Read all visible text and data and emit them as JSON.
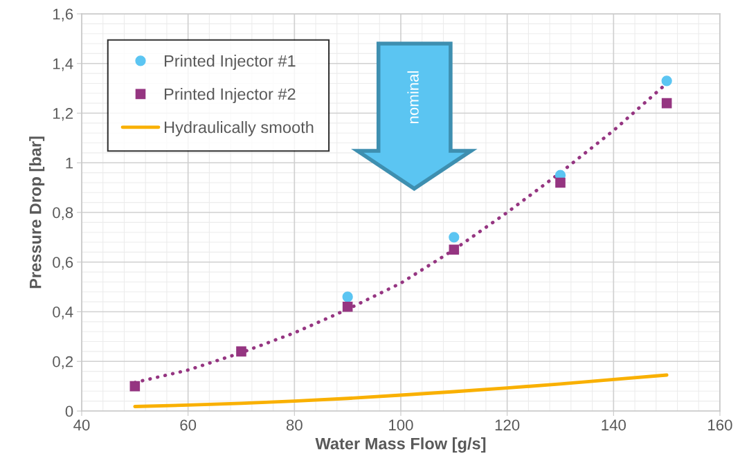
{
  "chart_data": {
    "type": "scatter",
    "xlabel": "Water Mass Flow [g/s]",
    "ylabel": "Pressure Drop [bar]",
    "x": [
      50,
      70,
      90,
      110,
      130,
      150
    ],
    "series": [
      {
        "name": "Printed Injector #1",
        "marker": "circle",
        "color": "#5bc5f2",
        "values": [
          null,
          null,
          0.46,
          0.7,
          0.95,
          1.33
        ]
      },
      {
        "name": "Printed Injector #2",
        "marker": "square",
        "color": "#953581",
        "values": [
          0.1,
          0.24,
          0.42,
          0.65,
          0.92,
          1.24
        ]
      },
      {
        "type": "line",
        "line_style": "dotted",
        "color": "#953581",
        "x": [
          50,
          60,
          70,
          80,
          90,
          100,
          110,
          120,
          130,
          140,
          150
        ],
        "values": [
          0.115,
          0.165,
          0.235,
          0.315,
          0.41,
          0.515,
          0.65,
          0.8,
          0.96,
          1.13,
          1.32
        ]
      },
      {
        "name": "Hydraulically smooth",
        "type": "line",
        "line_style": "solid",
        "color": "#f9b000",
        "x": [
          50,
          60,
          70,
          80,
          90,
          100,
          110,
          120,
          130,
          140,
          150
        ],
        "values": [
          0.018,
          0.024,
          0.031,
          0.04,
          0.051,
          0.064,
          0.078,
          0.093,
          0.109,
          0.127,
          0.145
        ]
      }
    ],
    "annotations": [
      "nominal"
    ],
    "xlim": [
      40,
      160
    ],
    "xticks": [
      40,
      60,
      80,
      100,
      120,
      140,
      160
    ],
    "ylim": [
      0,
      1.6
    ],
    "yticks": [
      0,
      {
        "value": 0.2,
        "label": "0,2"
      },
      {
        "value": 0.4,
        "label": "0,4"
      },
      {
        "value": 0.6,
        "label": "0,6"
      },
      {
        "value": 0.8,
        "label": "0,8"
      },
      1,
      {
        "value": 1.2,
        "label": "1,2"
      },
      {
        "value": 1.4,
        "label": "1,4"
      },
      {
        "value": 1.6,
        "label": "1,6"
      }
    ],
    "grid": true,
    "legend": "top left"
  }
}
